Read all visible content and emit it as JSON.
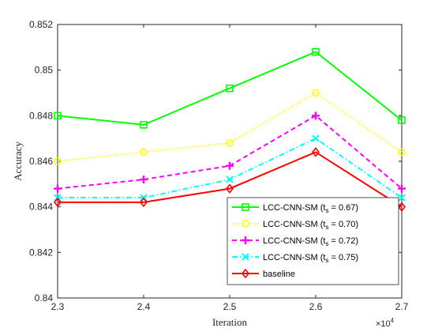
{
  "chart_data": {
    "type": "line",
    "title": "",
    "xlabel": "Iteration",
    "ylabel": "Accuracy",
    "x": [
      2.3,
      2.4,
      2.5,
      2.6,
      2.7
    ],
    "x_multiplier_label": "×10",
    "x_multiplier_exponent": "4",
    "xlim": [
      2.3,
      2.7
    ],
    "ylim": [
      0.84,
      0.852
    ],
    "x_ticks": [
      "2.3",
      "2.4",
      "2.5",
      "2.6",
      "2.7"
    ],
    "y_ticks": [
      0.84,
      0.842,
      0.844,
      0.846,
      0.848,
      0.85,
      0.852
    ],
    "y_tick_labels": [
      "0.84",
      "0.842",
      "0.844",
      "0.846",
      "0.848",
      "0.85",
      "0.852"
    ],
    "grid": false,
    "legend_position": "bottom-right",
    "series": [
      {
        "name_main": "LCC-CNN-SM (t",
        "name_sub": "s",
        "name_tail": " = 0.67)",
        "values": [
          0.848,
          0.8476,
          0.8492,
          0.8508,
          0.8478
        ],
        "color": "#00ff00",
        "dash": "solid",
        "marker": "square"
      },
      {
        "name_main": "LCC-CNN-SM (t",
        "name_sub": "s",
        "name_tail": " = 0.70)",
        "values": [
          0.846,
          0.8464,
          0.8468,
          0.849,
          0.8464
        ],
        "color": "#ffff00",
        "dash": "dotted",
        "marker": "circle"
      },
      {
        "name_main": "LCC-CNN-SM (t",
        "name_sub": "s",
        "name_tail": " = 0.72)",
        "values": [
          0.8448,
          0.8452,
          0.8458,
          0.848,
          0.8448
        ],
        "color": "#ff00ff",
        "dash": "dashed",
        "marker": "plus"
      },
      {
        "name_main": "LCC-CNN-SM (t",
        "name_sub": "s",
        "name_tail": " = 0.75)",
        "values": [
          0.8444,
          0.8444,
          0.8452,
          0.847,
          0.8444
        ],
        "color": "#00ffff",
        "dash": "dashdot",
        "marker": "x"
      },
      {
        "name_main": "baseline",
        "name_sub": "",
        "name_tail": "",
        "values": [
          0.8442,
          0.8442,
          0.8448,
          0.8464,
          0.844
        ],
        "color": "#ff0000",
        "dash": "solid",
        "marker": "diamond"
      }
    ]
  }
}
